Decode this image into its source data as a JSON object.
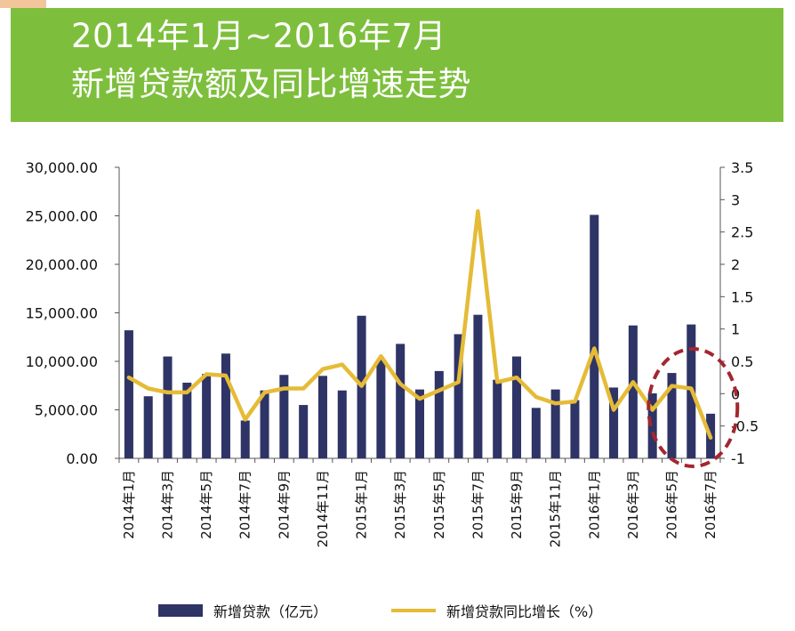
{
  "header": {
    "line1": "2014年1月~2016年7月",
    "line2": "新增贷款额及同比增速走势"
  },
  "chart_data": {
    "type": "bar+line",
    "title": "2014年1月~2016年7月 新增贷款额及同比增速走势",
    "categories": [
      "2014年1月",
      "2014年2月",
      "2014年3月",
      "2014年4月",
      "2014年5月",
      "2014年6月",
      "2014年7月",
      "2014年8月",
      "2014年9月",
      "2014年10月",
      "2014年11月",
      "2014年12月",
      "2015年1月",
      "2015年2月",
      "2015年3月",
      "2015年4月",
      "2015年5月",
      "2015年6月",
      "2015年7月",
      "2015年8月",
      "2015年9月",
      "2015年10月",
      "2015年11月",
      "2015年12月",
      "2016年1月",
      "2016年2月",
      "2016年3月",
      "2016年4月",
      "2016年5月",
      "2016年6月",
      "2016年7月"
    ],
    "shown_tick_labels": [
      "2014年1月",
      "2014年3月",
      "2014年5月",
      "2014年7月",
      "2014年9月",
      "2014年11月",
      "2015年1月",
      "2015年3月",
      "2015年5月",
      "2015年7月",
      "2015年9月",
      "2015年11月",
      "2016年1月",
      "2016年3月",
      "2016年5月",
      "2016年7月"
    ],
    "series": [
      {
        "name": "新增贷款（亿元）",
        "type": "bar",
        "axis": "left",
        "color": "#2e3466",
        "values": [
          13200,
          6400,
          10500,
          7800,
          8700,
          10800,
          3900,
          7000,
          8600,
          5500,
          8500,
          7000,
          14700,
          10200,
          11800,
          7100,
          9000,
          12800,
          14800,
          8100,
          10500,
          5200,
          7100,
          6000,
          25100,
          7300,
          13700,
          6700,
          8800,
          13800,
          4600
        ]
      },
      {
        "name": "新增贷款同比增长（%）",
        "type": "line",
        "axis": "right",
        "color": "#e5bb37",
        "values": [
          0.25,
          0.08,
          0.02,
          0.02,
          0.3,
          0.28,
          -0.4,
          0.02,
          0.08,
          0.08,
          0.38,
          0.45,
          0.12,
          0.58,
          0.15,
          -0.08,
          0.05,
          0.18,
          2.82,
          0.18,
          0.25,
          -0.05,
          -0.15,
          -0.12,
          0.7,
          -0.25,
          0.18,
          -0.25,
          0.12,
          0.08,
          -0.68
        ]
      }
    ],
    "left_axis": {
      "min": 0,
      "max": 30000,
      "ticks": [
        "30,000.00",
        "25,000.00",
        "20,000.00",
        "15,000.00",
        "10,000.00",
        "5,000.00",
        "0.00"
      ]
    },
    "right_axis": {
      "min": -1,
      "max": 3.5,
      "ticks": [
        "3.5",
        "3",
        "2.5",
        "2",
        "1.5",
        "1",
        "0.5",
        "0",
        "-0.5",
        "-1"
      ]
    },
    "annotation": "dashed red ellipse around 2016年5月–2016年7月",
    "legend_position": "bottom"
  },
  "legend": {
    "bar_label": "新增贷款（亿元）",
    "line_label": "新增贷款同比增长（%）"
  },
  "colors": {
    "banner": "#7dbf3c",
    "bar": "#2e3466",
    "line": "#e5bb37",
    "highlight": "#a3262f"
  }
}
